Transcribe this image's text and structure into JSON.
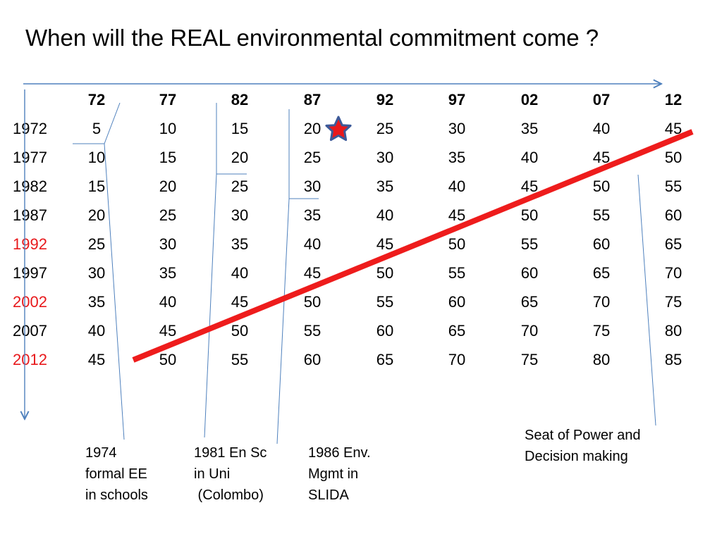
{
  "title": "When will the REAL environmental commitment come ?",
  "column_headers": [
    "72",
    "77",
    "82",
    "87",
    "92",
    "97",
    "02",
    "07",
    "12"
  ],
  "rows": [
    {
      "year": "1972",
      "highlight": false,
      "values": [
        "5",
        "10",
        "15",
        "20",
        "25",
        "30",
        "35",
        "40",
        "45"
      ]
    },
    {
      "year": "1977",
      "highlight": false,
      "values": [
        "10",
        "15",
        "20",
        "25",
        "30",
        "35",
        "40",
        "45",
        "50"
      ]
    },
    {
      "year": "1982",
      "highlight": false,
      "values": [
        "15",
        "20",
        "25",
        "30",
        "35",
        "40",
        "45",
        "50",
        "55"
      ]
    },
    {
      "year": "1987",
      "highlight": false,
      "values": [
        "20",
        "25",
        "30",
        "35",
        "40",
        "45",
        "50",
        "55",
        "60"
      ]
    },
    {
      "year": "1992",
      "highlight": true,
      "values": [
        "25",
        "30",
        "35",
        "40",
        "45",
        "50",
        "55",
        "60",
        "65"
      ]
    },
    {
      "year": "1997",
      "highlight": false,
      "values": [
        "30",
        "35",
        "40",
        "45",
        "50",
        "55",
        "60",
        "65",
        "70"
      ]
    },
    {
      "year": "2002",
      "highlight": true,
      "values": [
        "35",
        "40",
        "45",
        "50",
        "55",
        "60",
        "65",
        "70",
        "75"
      ]
    },
    {
      "year": "2007",
      "highlight": false,
      "values": [
        "40",
        "45",
        "50",
        "55",
        "60",
        "65",
        "70",
        "75",
        "80"
      ]
    },
    {
      "year": "2012",
      "highlight": true,
      "values": [
        "45",
        "50",
        "55",
        "60",
        "65",
        "70",
        "75",
        "80",
        "85"
      ]
    }
  ],
  "notes": {
    "ee_schools": "1974\nformal EE\nin schools",
    "en_sc_uni": "1981 En Sc\nin Uni\n (Colombo)",
    "env_mgmt": "1986 Env.\nMgmt in\nSLIDA",
    "seat_of_power": "Seat of Power and\nDecision making"
  },
  "colors": {
    "highlight_year": "#e8191c",
    "trend_line": "#ee1c1c",
    "axis_arrow": "#4f81bd",
    "callout_line": "#4f81bd",
    "star_fill": "#e8191c",
    "star_stroke": "#3c5a99"
  }
}
